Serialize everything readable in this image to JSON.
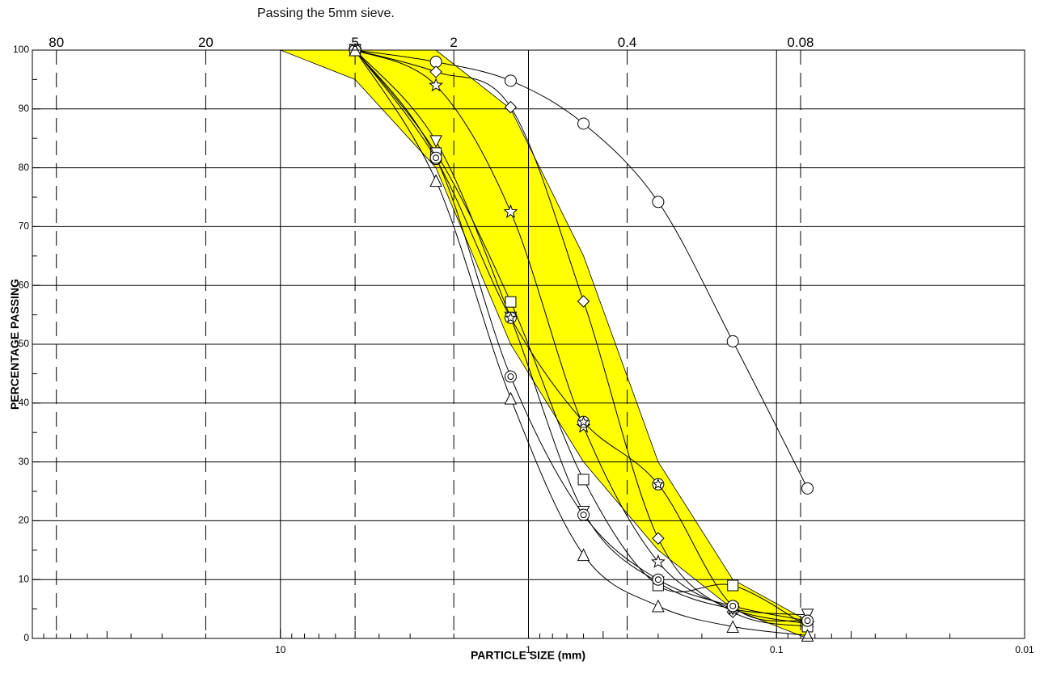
{
  "annotation": "Passing the 5mm sieve.",
  "chart_data": {
    "type": "line",
    "xlabel": "PARTICLE SIZE (mm)",
    "ylabel": "PERCENTAGE PASSING",
    "x_scale": "log",
    "x_direction": "descending",
    "xlim": [
      100,
      0.01
    ],
    "ylim": [
      0,
      100
    ],
    "y_ticks": [
      0,
      10,
      20,
      30,
      40,
      50,
      60,
      70,
      80,
      90,
      100
    ],
    "x_ticks": [
      10,
      1,
      0.1,
      0.01
    ],
    "x_tick_labels": [
      "10",
      "1",
      "0.1",
      "0.01"
    ],
    "top_sieve_sizes": [
      80,
      20,
      5,
      2,
      0.4,
      0.08
    ],
    "top_sieve_labels": [
      "80",
      "20",
      "5",
      "2",
      "0.4",
      "0.08"
    ],
    "grid": true,
    "sieve_sizes": [
      5,
      2.36,
      1.18,
      0.6,
      0.3,
      0.15,
      0.075
    ],
    "envelope": {
      "color": "#ffff00",
      "upper": [
        [
          10,
          100
        ],
        [
          2.36,
          100
        ],
        [
          1.18,
          90
        ],
        [
          0.6,
          65
        ],
        [
          0.3,
          30
        ],
        [
          0.15,
          10
        ],
        [
          0.075,
          3
        ]
      ],
      "lower": [
        [
          10,
          100
        ],
        [
          5,
          95
        ],
        [
          2.36,
          80
        ],
        [
          1.18,
          50
        ],
        [
          0.6,
          30
        ],
        [
          0.3,
          15
        ],
        [
          0.15,
          5
        ],
        [
          0.075,
          0
        ]
      ]
    },
    "series": [
      {
        "marker": "circle",
        "values": [
          100,
          98,
          94.8,
          87.5,
          74.2,
          50.5,
          25.5
        ]
      },
      {
        "marker": "diamond",
        "values": [
          100,
          96.3,
          90.3,
          57.3,
          17,
          4.5,
          2
        ]
      },
      {
        "marker": "star",
        "values": [
          100,
          94,
          72.5,
          36,
          13,
          5,
          2.5
        ]
      },
      {
        "marker": "triangle-down",
        "values": [
          100,
          84.5,
          54.5,
          21.5,
          9.5,
          5,
          4
        ]
      },
      {
        "marker": "square",
        "values": [
          100,
          82.5,
          57.2,
          27,
          9,
          9,
          2
        ]
      },
      {
        "marker": "circle-star",
        "values": [
          100,
          81.5,
          54.5,
          36.8,
          26.2,
          5.5,
          3
        ]
      },
      {
        "marker": "circle-dot",
        "values": [
          100,
          81.7,
          44.5,
          21,
          10,
          5.5,
          3
        ]
      },
      {
        "marker": "triangle",
        "values": [
          100,
          77.8,
          40.8,
          14.2,
          5.5,
          2,
          0.5
        ]
      }
    ]
  }
}
